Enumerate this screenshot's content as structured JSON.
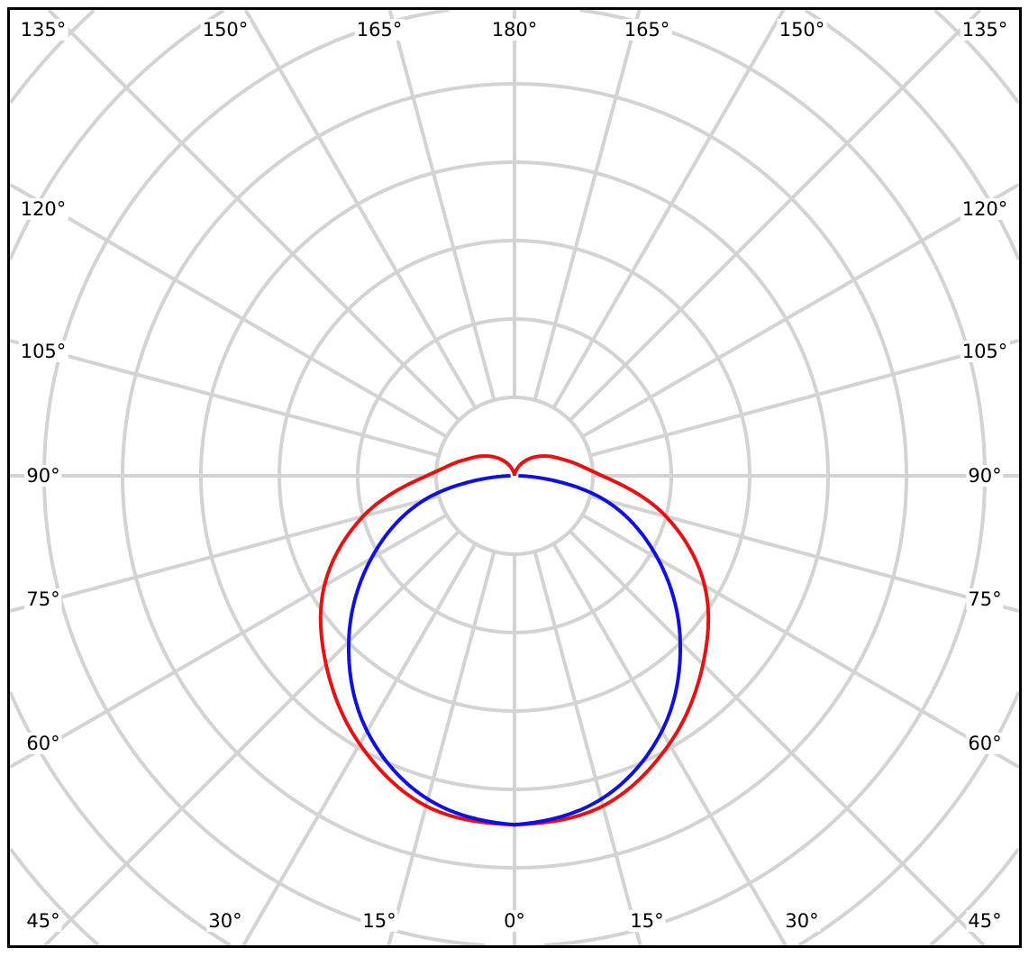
{
  "chart_data": {
    "type": "polar",
    "title": "",
    "angle_zero": "bottom",
    "angle_step_deg": 15,
    "radial_rings": 9,
    "grid": true,
    "grid_color": "#d3d3d3",
    "angle_labels": {
      "left": [
        "135°",
        "120°",
        "105°",
        "90°",
        "75°",
        "60°",
        "45°"
      ],
      "right": [
        "135°",
        "120°",
        "105°",
        "90°",
        "75°",
        "60°",
        "45°"
      ],
      "top": [
        "150°",
        "165°",
        "180°",
        "165°",
        "150°"
      ],
      "bottom": [
        "30°",
        "15°",
        "0°",
        "15°",
        "30°"
      ]
    },
    "series": [
      {
        "color": "#e81010",
        "angles_deg": [
          0,
          15,
          30,
          45,
          60,
          75,
          90,
          105,
          120,
          135,
          150,
          165,
          180
        ],
        "values": [
          4.45,
          4.36,
          3.95,
          3.4,
          2.8,
          2.0,
          1.12,
          0.72,
          0.5,
          0.33,
          0.18,
          0.06,
          0.0
        ]
      },
      {
        "color": "#1010e0",
        "angles_deg": [
          0,
          15,
          30,
          45,
          60,
          75,
          90
        ],
        "values": [
          4.45,
          4.27,
          3.76,
          2.99,
          2.11,
          1.19,
          0.05
        ]
      }
    ]
  }
}
